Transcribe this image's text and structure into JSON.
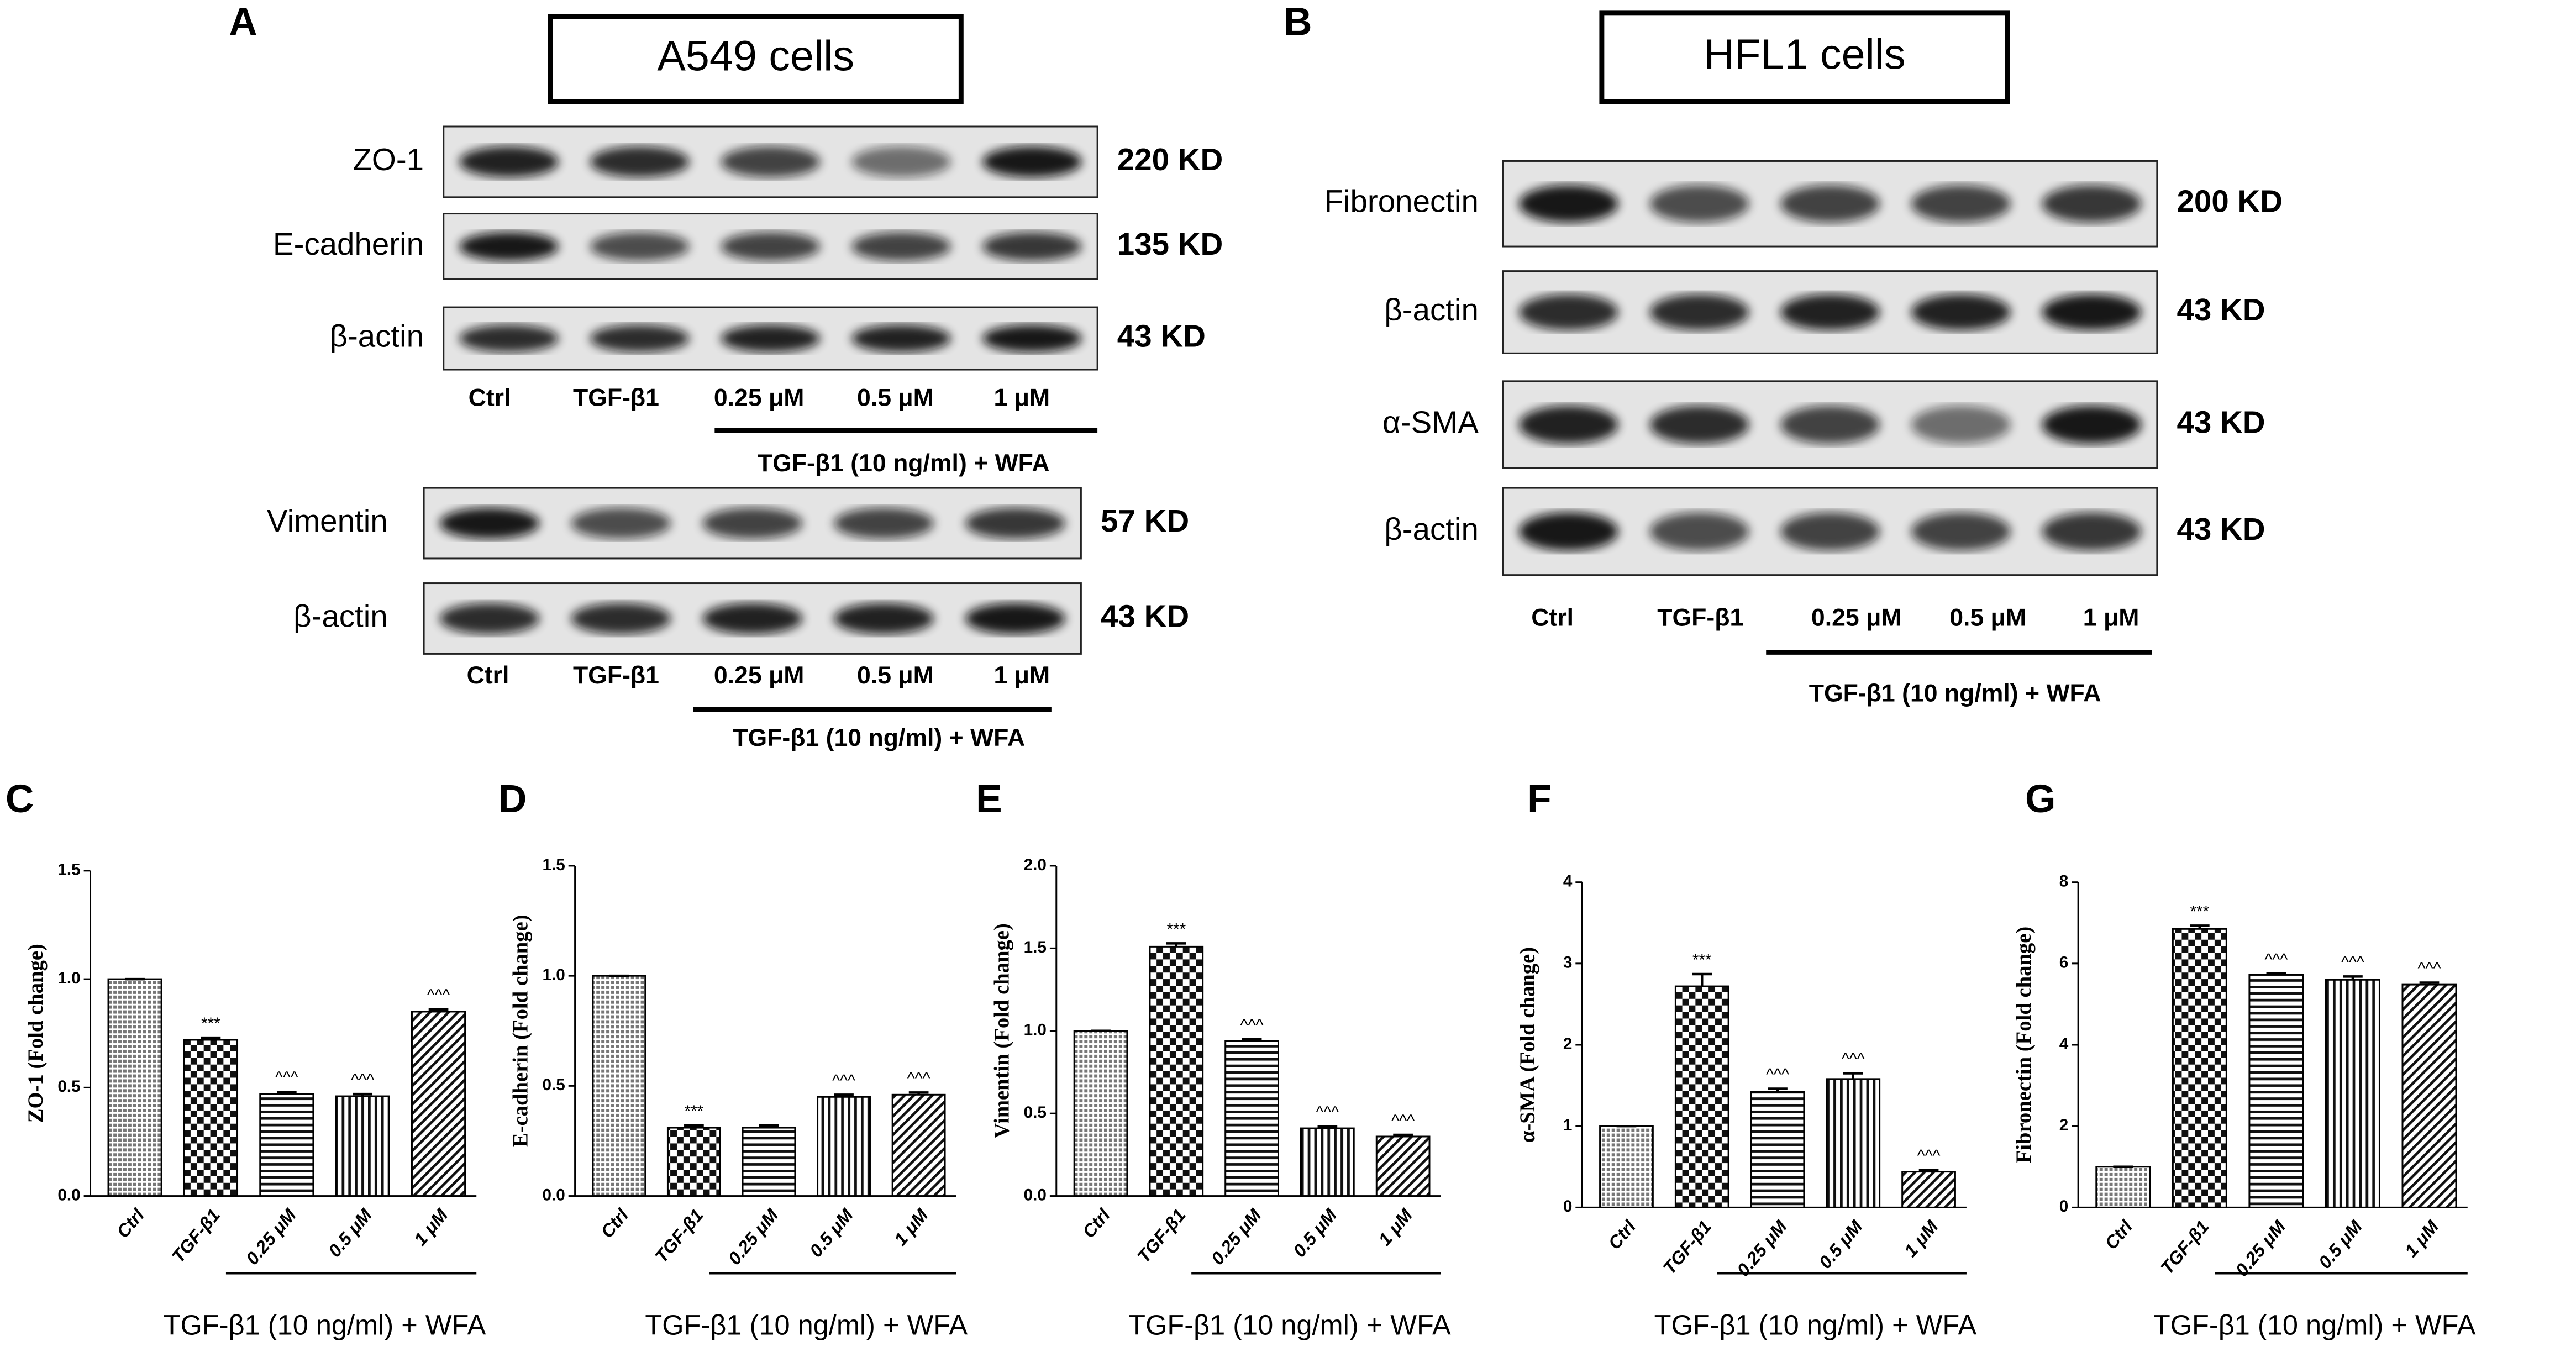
{
  "blots": [
    {
      "panel": "A",
      "title": "A549 cells",
      "groups": [
        {
          "rows": [
            {
              "label": "ZO-1",
              "size": "220 KD"
            },
            {
              "label": "E-cadherin",
              "size": "135 KD"
            },
            {
              "label": "β-actin",
              "size": "43 KD"
            }
          ],
          "lanes": [
            "Ctrl",
            "TGF-β1",
            "0.25 μM",
            "0.5 μM",
            "1 μM"
          ],
          "treatment": "TGF-β1 (10 ng/ml) + WFA"
        },
        {
          "rows": [
            {
              "label": "Vimentin",
              "size": "57 KD"
            },
            {
              "label": "β-actin",
              "size": "43 KD"
            }
          ],
          "lanes": [
            "Ctrl",
            "TGF-β1",
            "0.25 μM",
            "0.5 μM",
            "1 μM"
          ],
          "treatment": "TGF-β1 (10 ng/ml) + WFA"
        }
      ]
    },
    {
      "panel": "B",
      "title": "HFL1 cells",
      "groups": [
        {
          "rows": [
            {
              "label": "Fibronectin",
              "size": "200 KD"
            },
            {
              "label": "β-actin",
              "size": "43 KD"
            },
            {
              "label": "α-SMA",
              "size": "43 KD"
            },
            {
              "label": "β-actin",
              "size": "43 KD"
            }
          ],
          "lanes": [
            "Ctrl",
            "TGF-β1",
            "0.25 μM",
            "0.5 μM",
            "1 μM"
          ],
          "treatment": "TGF-β1 (10 ng/ml) + WFA"
        }
      ]
    }
  ],
  "chart_data": [
    {
      "type": "bar",
      "panel": "C",
      "ylabel": "ZO-1 (Fold change)",
      "xlabel": "TGF-β1 (10 ng/ml) + WFA",
      "categories": [
        "Ctrl",
        "TGF-β1",
        "0.25 μM",
        "0.5 μM",
        "1 μM"
      ],
      "values": [
        1.0,
        0.72,
        0.47,
        0.46,
        0.85
      ],
      "errors": [
        0,
        0.01,
        0.01,
        0.01,
        0.01
      ],
      "annotations": [
        null,
        "***",
        "^^^",
        "^^^",
        "^^^"
      ],
      "ylim": [
        0,
        1.5
      ],
      "yticks": [
        {
          "value": 0,
          "label": "0.0"
        },
        0.5,
        {
          "value": 1,
          "label": "1.0"
        },
        1.5
      ],
      "color": "#000000"
    },
    {
      "type": "bar",
      "panel": "D",
      "ylabel": "E-cadherin (Fold change)",
      "xlabel": "TGF-β1 (10 ng/ml) + WFA",
      "categories": [
        "Ctrl",
        "TGF-β1",
        "0.25 μM",
        "0.5 μM",
        "1 μM"
      ],
      "values": [
        1.0,
        0.31,
        0.31,
        0.45,
        0.46
      ],
      "errors": [
        0,
        0.01,
        0.01,
        0.01,
        0.01
      ],
      "annotations": [
        null,
        "***",
        null,
        "^^^",
        "^^^"
      ],
      "ylim": [
        0,
        1.5
      ],
      "yticks": [
        {
          "value": 0,
          "label": "0.0"
        },
        0.5,
        {
          "value": 1,
          "label": "1.0"
        },
        1.5
      ],
      "color": "#000000"
    },
    {
      "type": "bar",
      "panel": "E",
      "ylabel": "Vimentin (Fold change)",
      "xlabel": "TGF-β1 (10 ng/ml) + WFA",
      "categories": [
        "Ctrl",
        "TGF-β1",
        "0.25 μM",
        "0.5 μM",
        "1 μM"
      ],
      "values": [
        1.0,
        1.51,
        0.94,
        0.41,
        0.36
      ],
      "errors": [
        0,
        0.02,
        0.01,
        0.01,
        0.01
      ],
      "annotations": [
        null,
        "***",
        "^^^",
        "^^^",
        "^^^"
      ],
      "ylim": [
        0,
        2
      ],
      "yticks": [
        {
          "value": 0,
          "label": "0.0"
        },
        0.5,
        {
          "value": 1,
          "label": "1.0"
        },
        1.5,
        {
          "value": 2,
          "label": "2.0"
        }
      ],
      "color": "#000000"
    },
    {
      "type": "bar",
      "panel": "F",
      "ylabel": "α-SMA (Fold change)",
      "xlabel": "TGF-β1 (10 ng/ml) + WFA",
      "categories": [
        "Ctrl",
        "TGF-β1",
        "0.25 μM",
        "0.5 μM",
        "1 μM"
      ],
      "values": [
        1.0,
        2.72,
        1.42,
        1.58,
        0.44
      ],
      "errors": [
        0,
        0.15,
        0.04,
        0.07,
        0.02
      ],
      "annotations": [
        null,
        "***",
        "^^^",
        "^^^",
        "^^^"
      ],
      "ylim": [
        0,
        4
      ],
      "yticks": [
        0,
        1,
        2,
        3,
        4
      ],
      "color": "#000000"
    },
    {
      "type": "bar",
      "panel": "G",
      "ylabel": "Fibronectin (Fold change)",
      "xlabel": "TGF-β1 (10 ng/ml) + WFA",
      "categories": [
        "Ctrl",
        "TGF-β1",
        "0.25 μM",
        "0.5 μM",
        "1 μM"
      ],
      "values": [
        1.0,
        6.85,
        5.72,
        5.6,
        5.48
      ],
      "errors": [
        0,
        0.08,
        0.03,
        0.08,
        0.05
      ],
      "annotations": [
        null,
        "***",
        "^^^",
        "^^^",
        "^^^"
      ],
      "ylim": [
        0,
        8
      ],
      "yticks": [
        0,
        2,
        4,
        6,
        8
      ],
      "color": "#000000"
    }
  ]
}
